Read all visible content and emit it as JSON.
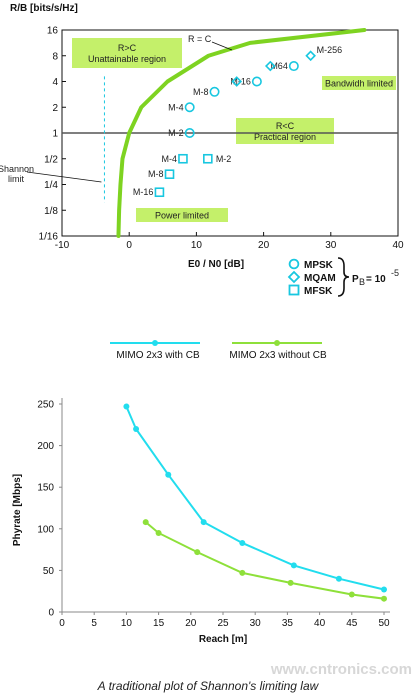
{
  "chart_data": [
    {
      "type": "line",
      "ylabel": "R/B [bits/s/Hz]",
      "xlabel": "E0 / N0 [dB]",
      "xlim": [
        -10,
        40
      ],
      "x_ticks": [
        -10,
        0,
        10,
        20,
        30,
        40
      ],
      "y_ticks": [
        "16",
        "8",
        "4",
        "2",
        "1",
        "1/2",
        "1/4",
        "1/8",
        "1/16"
      ],
      "y_scale": "log2",
      "ylim_log2": [
        -4,
        4
      ],
      "grid": false,
      "colors": {
        "bound": "#7ed321",
        "markers": "#18c7e0",
        "boxes": "#c4f06a",
        "hline": "#555555"
      },
      "bound_curve": {
        "label": "R = C",
        "points": [
          [
            -1.6,
            -4
          ],
          [
            -1.5,
            -3
          ],
          [
            -1.3,
            -2
          ],
          [
            -1,
            -1
          ],
          [
            0,
            0
          ],
          [
            1.8,
            1
          ],
          [
            5.7,
            2
          ],
          [
            11.8,
            3
          ],
          [
            18,
            3.5
          ],
          [
            35,
            4
          ]
        ]
      },
      "shannon_limit": {
        "label": "Shannon\nlimit",
        "x": -1.6
      },
      "regions": [
        {
          "text": "R>C\nUnattainable region"
        },
        {
          "text": "Bandwidh limited"
        },
        {
          "text": "R<C\nPractical region"
        },
        {
          "text": "Power limited"
        }
      ],
      "mpsk": [
        {
          "label": "M-2",
          "x": 9,
          "y": 0
        },
        {
          "label": "M-4",
          "x": 9,
          "y": 1
        },
        {
          "label": "M-8",
          "x": 12.7,
          "y": 1.6
        },
        {
          "label": "M-16",
          "x": 19,
          "y": 2
        },
        {
          "label": "M64",
          "x": 24.5,
          "y": 2.6
        }
      ],
      "mqam": [
        {
          "label": "",
          "x": 16,
          "y": 2
        },
        {
          "label": "",
          "x": 21,
          "y": 2.6
        },
        {
          "label": "M-256",
          "x": 27,
          "y": 3
        }
      ],
      "mfsk": [
        {
          "label": "M-2",
          "x": 11.7,
          "y": -1
        },
        {
          "label": "M-4",
          "x": 8,
          "y": -1
        },
        {
          "label": "M-8",
          "x": 6,
          "y": -1.6
        },
        {
          "label": "M-16",
          "x": 4.5,
          "y": -2.3
        }
      ],
      "legend": [
        {
          "label": "MPSK",
          "marker": "circle"
        },
        {
          "label": "MQAM",
          "marker": "diamond"
        },
        {
          "label": "MFSK",
          "marker": "square"
        }
      ],
      "pb_text": "P",
      "pb_sub": "B",
      "pb_eq": "= 10",
      "pb_exp": "-5"
    },
    {
      "type": "line",
      "xlabel": "Reach [m]",
      "ylabel": "Phyrate [Mbps]",
      "xlim": [
        0,
        50
      ],
      "ylim": [
        0,
        250
      ],
      "x_ticks": [
        0,
        5,
        10,
        15,
        20,
        25,
        30,
        35,
        40,
        45,
        50
      ],
      "y_ticks": [
        0,
        50,
        100,
        150,
        200,
        250
      ],
      "grid": false,
      "legend_position": "top",
      "series": [
        {
          "name": "MIMO 2x3 with CB",
          "color": "#22ddee",
          "x": [
            10,
            11.5,
            16.5,
            22,
            28,
            36,
            43,
            50
          ],
          "y": [
            247,
            220,
            165,
            108,
            83,
            56,
            40,
            27
          ]
        },
        {
          "name": "MIMO 2x3 without CB",
          "color": "#8ee03a",
          "x": [
            13,
            15,
            21,
            28,
            35.5,
            45,
            50
          ],
          "y": [
            108,
            95,
            72,
            47,
            35,
            21,
            16
          ]
        }
      ]
    }
  ],
  "caption": "A traditional plot of Shannon's limiting law",
  "watermark": "www.cntronics.com"
}
